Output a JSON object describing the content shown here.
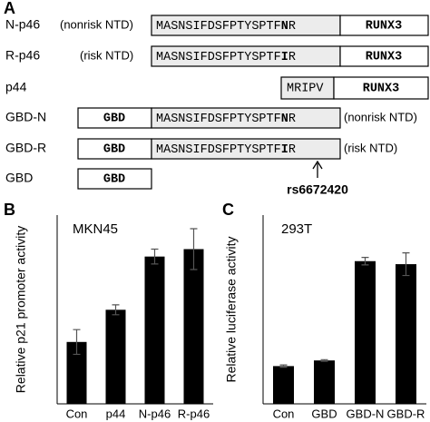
{
  "panel_a": {
    "panel": "A",
    "rows": [
      {
        "label": "N-p46",
        "note": "(nonrisk NTD)",
        "seq_prefix": "MASNSIFDSFPTYSPTF",
        "residue": "N",
        "seq_suffix": "R",
        "domain": "RUNX3"
      },
      {
        "label": "R-p46",
        "note": "(risk NTD)",
        "seq_prefix": "MASNSIFDSFPTYSPTF",
        "residue": "I",
        "seq_suffix": "R",
        "domain": "RUNX3"
      },
      {
        "label": "p44",
        "short_seq": "MRIPV",
        "domain": "RUNX3"
      },
      {
        "label": "GBD-N",
        "tag": "GBD",
        "seq_prefix": "MASNSIFDSFPTYSPTF",
        "residue": "N",
        "seq_suffix": "R",
        "note": "(nonrisk NTD)"
      },
      {
        "label": "GBD-R",
        "tag": "GBD",
        "seq_prefix": "MASNSIFDSFPTYSPTF",
        "residue": "I",
        "seq_suffix": "R",
        "note": "(risk NTD)"
      },
      {
        "label": "GBD",
        "tag": "GBD"
      }
    ],
    "snp": "rs6672420"
  },
  "chart_data": [
    {
      "type": "bar",
      "panel": "B",
      "annotation": "MKN45",
      "y_label": "Relative p21 promoter activity",
      "categories": [
        "Con",
        "p44",
        "N-p46",
        "R-p46"
      ],
      "values": [
        1.0,
        1.52,
        2.38,
        2.5
      ],
      "errors": [
        0.2,
        0.08,
        0.12,
        0.33
      ],
      "color": "#000000",
      "ylim": [
        0,
        3.05
      ]
    },
    {
      "type": "bar",
      "panel": "C",
      "annotation": "293T",
      "y_label": "Relative luciferase activity",
      "categories": [
        "Con",
        "GBD",
        "GBD-N",
        "GBD-R"
      ],
      "values": [
        1.0,
        1.15,
        3.78,
        3.7
      ],
      "errors": [
        0.03,
        0.02,
        0.1,
        0.3
      ],
      "color": "#000000",
      "ylim": [
        0,
        5
      ]
    }
  ]
}
